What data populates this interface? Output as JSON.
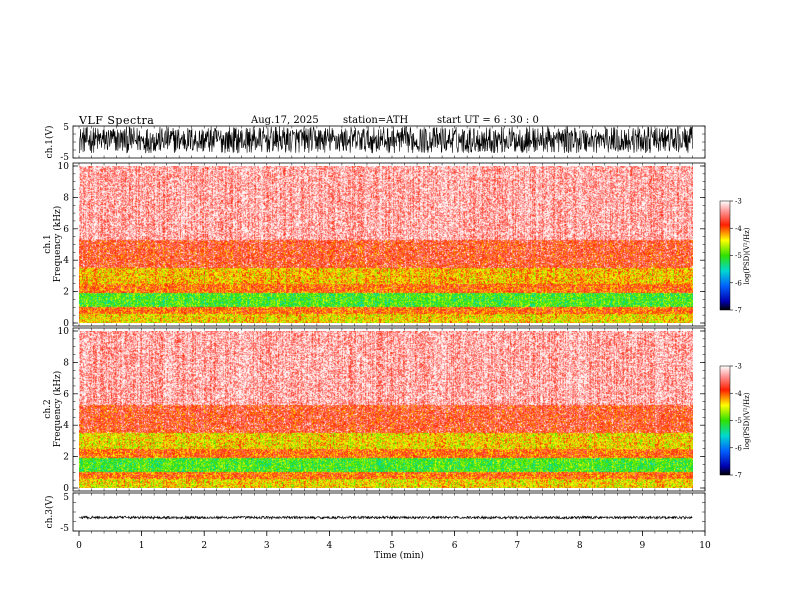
{
  "header": {
    "title": "VLF  Spectra",
    "date": "Aug.17, 2025",
    "station": "station=ATH",
    "start": "start  UT  =   6  : 30 : 0"
  },
  "chart_data": [
    {
      "type": "line",
      "panel": "ch1-waveform",
      "ylabel": "ch.1(V)",
      "ylim": [
        -5,
        5
      ],
      "y_ticks": [
        "5",
        "-5"
      ],
      "series_color": "#000000",
      "amplitude_range": [
        -3.5,
        4.8
      ]
    },
    {
      "type": "heatmap",
      "panel": "ch1-spectrogram",
      "channel_label": "ch.1",
      "ylabel": "Frequency  (kHz)",
      "ylim": [
        0,
        10
      ],
      "y_ticks": [
        "0",
        "2",
        "4",
        "6",
        "8",
        "10"
      ],
      "colorbar": {
        "label": "log(PSD)(V²/Hz)",
        "range": [
          -7,
          -3
        ],
        "ticks": [
          "-3",
          "-4",
          "-5",
          "-6",
          "-7"
        ]
      },
      "bands_khz": [
        {
          "from": 0,
          "to": 0.6,
          "level": -4.4
        },
        {
          "from": 0.6,
          "to": 1.0,
          "level": -4.0
        },
        {
          "from": 1.0,
          "to": 1.9,
          "level": -5.0
        },
        {
          "from": 1.9,
          "to": 2.5,
          "level": -4.0
        },
        {
          "from": 2.5,
          "to": 3.5,
          "level": -4.3
        },
        {
          "from": 3.5,
          "to": 5.3,
          "level": -3.8
        },
        {
          "from": 5.3,
          "to": 10,
          "level": -3.3
        }
      ]
    },
    {
      "type": "heatmap",
      "panel": "ch2-spectrogram",
      "channel_label": "ch.2",
      "ylabel": "Frequency  (kHz)",
      "ylim": [
        0,
        10
      ],
      "y_ticks": [
        "0",
        "2",
        "4",
        "6",
        "8",
        "10"
      ],
      "colorbar": {
        "label": "log(PSD)(V²/Hz)",
        "range": [
          -7,
          -3
        ],
        "ticks": [
          "-3",
          "-4",
          "-5",
          "-6",
          "-7"
        ]
      },
      "bands_khz": [
        {
          "from": 0,
          "to": 0.6,
          "level": -4.4
        },
        {
          "from": 0.6,
          "to": 1.0,
          "level": -4.0
        },
        {
          "from": 1.0,
          "to": 1.9,
          "level": -5.0
        },
        {
          "from": 1.9,
          "to": 2.5,
          "level": -4.0
        },
        {
          "from": 2.5,
          "to": 3.5,
          "level": -4.4
        },
        {
          "from": 3.5,
          "to": 5.3,
          "level": -3.8
        },
        {
          "from": 5.3,
          "to": 10,
          "level": -3.3
        }
      ]
    },
    {
      "type": "line",
      "panel": "ch3-waveform",
      "ylabel": "ch.3(V)",
      "ylim": [
        -5,
        5
      ],
      "y_ticks": [
        "5",
        "-5"
      ],
      "series_color": "#000000",
      "amplitude_range": [
        -1.8,
        -1.1
      ]
    }
  ],
  "x_axis": {
    "label": "Time  (min)",
    "xlim": [
      0,
      10
    ],
    "data_end": 9.8,
    "ticks": [
      "0",
      "1",
      "2",
      "3",
      "4",
      "5",
      "6",
      "7",
      "8",
      "9",
      "10"
    ]
  }
}
